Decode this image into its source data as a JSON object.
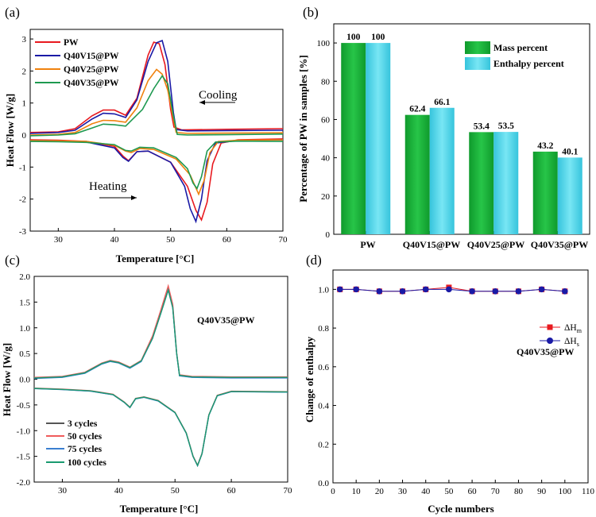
{
  "chart_data": [
    {
      "panel": "(a)",
      "type": "line",
      "xlabel": "Temperature [°C]",
      "ylabel": "Heat Flow [W/g]",
      "xlim": [
        25,
        70
      ],
      "ylim": [
        -3,
        3.3
      ],
      "xticks": [
        30,
        40,
        50,
        60,
        70
      ],
      "yticks": [
        -3,
        -2,
        -1,
        0,
        1,
        2,
        3
      ],
      "annotations": [
        "Cooling",
        "Heating"
      ],
      "series": [
        {
          "name": "PW",
          "color": "#e8191f",
          "cooling": [
            [
              25,
              0.08
            ],
            [
              30,
              0.1
            ],
            [
              33,
              0.2
            ],
            [
              36,
              0.6
            ],
            [
              38,
              0.78
            ],
            [
              40,
              0.78
            ],
            [
              42,
              0.62
            ],
            [
              44,
              1.15
            ],
            [
              46,
              2.5
            ],
            [
              47,
              2.9
            ],
            [
              48,
              2.85
            ],
            [
              49,
              2.2
            ],
            [
              50,
              0.8
            ],
            [
              50.6,
              0.25
            ],
            [
              52,
              0.16
            ],
            [
              60,
              0.18
            ],
            [
              70,
              0.2
            ]
          ],
          "heating": [
            [
              25,
              -0.15
            ],
            [
              30,
              -0.16
            ],
            [
              35,
              -0.2
            ],
            [
              40,
              -0.35
            ],
            [
              41.5,
              -0.65
            ],
            [
              42.5,
              -0.8
            ],
            [
              44,
              -0.52
            ],
            [
              46,
              -0.5
            ],
            [
              50,
              -0.85
            ],
            [
              53,
              -1.6
            ],
            [
              54.5,
              -2.35
            ],
            [
              55.5,
              -2.65
            ],
            [
              56.5,
              -2.1
            ],
            [
              57.5,
              -0.9
            ],
            [
              59,
              -0.25
            ],
            [
              62,
              -0.15
            ],
            [
              70,
              -0.12
            ]
          ]
        },
        {
          "name": "Q40V15@PW",
          "color": "#1a1aa6",
          "cooling": [
            [
              25,
              0.05
            ],
            [
              30,
              0.08
            ],
            [
              33,
              0.15
            ],
            [
              36,
              0.5
            ],
            [
              38,
              0.68
            ],
            [
              40,
              0.66
            ],
            [
              42,
              0.55
            ],
            [
              44,
              1.1
            ],
            [
              46,
              2.3
            ],
            [
              47.5,
              2.88
            ],
            [
              48.5,
              2.95
            ],
            [
              49.5,
              2.3
            ],
            [
              50.5,
              0.7
            ],
            [
              51,
              0.17
            ],
            [
              53,
              0.13
            ],
            [
              60,
              0.14
            ],
            [
              70,
              0.15
            ]
          ],
          "heating": [
            [
              25,
              -0.17
            ],
            [
              30,
              -0.18
            ],
            [
              35,
              -0.22
            ],
            [
              40,
              -0.4
            ],
            [
              41.5,
              -0.7
            ],
            [
              42.5,
              -0.82
            ],
            [
              44,
              -0.52
            ],
            [
              46,
              -0.5
            ],
            [
              50,
              -0.85
            ],
            [
              52.5,
              -1.6
            ],
            [
              53.5,
              -2.3
            ],
            [
              54.5,
              -2.7
            ],
            [
              55.5,
              -2.0
            ],
            [
              56.5,
              -0.8
            ],
            [
              58,
              -0.25
            ],
            [
              62,
              -0.17
            ],
            [
              70,
              -0.15
            ]
          ]
        },
        {
          "name": "Q40V25@PW",
          "color": "#f0820e",
          "cooling": [
            [
              25,
              0.0
            ],
            [
              30,
              0.02
            ],
            [
              33,
              0.08
            ],
            [
              36,
              0.35
            ],
            [
              38,
              0.46
            ],
            [
              40,
              0.45
            ],
            [
              42,
              0.4
            ],
            [
              44,
              0.85
            ],
            [
              46,
              1.7
            ],
            [
              47.5,
              2.05
            ],
            [
              48.5,
              1.9
            ],
            [
              49.5,
              1.4
            ],
            [
              50.5,
              0.5
            ],
            [
              51,
              0.08
            ],
            [
              53,
              0.05
            ],
            [
              60,
              0.06
            ],
            [
              70,
              0.07
            ]
          ],
          "heating": [
            [
              25,
              -0.17
            ],
            [
              30,
              -0.18
            ],
            [
              35,
              -0.2
            ],
            [
              40,
              -0.32
            ],
            [
              42,
              -0.5
            ],
            [
              43,
              -0.55
            ],
            [
              44.5,
              -0.42
            ],
            [
              47,
              -0.45
            ],
            [
              51,
              -0.75
            ],
            [
              53.5,
              -1.25
            ],
            [
              55,
              -1.85
            ],
            [
              56,
              -1.4
            ],
            [
              57,
              -0.55
            ],
            [
              58.5,
              -0.2
            ],
            [
              62,
              -0.16
            ],
            [
              70,
              -0.15
            ]
          ]
        },
        {
          "name": "Q40V35@PW",
          "color": "#1e9950",
          "cooling": [
            [
              25,
              -0.02
            ],
            [
              30,
              0.0
            ],
            [
              33,
              0.04
            ],
            [
              36,
              0.22
            ],
            [
              38,
              0.34
            ],
            [
              40,
              0.32
            ],
            [
              42,
              0.28
            ],
            [
              45,
              0.8
            ],
            [
              47,
              1.45
            ],
            [
              48.5,
              1.85
            ],
            [
              49.5,
              1.6
            ],
            [
              50.5,
              0.6
            ],
            [
              51.2,
              0.02
            ],
            [
              53,
              0.0
            ],
            [
              60,
              0.01
            ],
            [
              70,
              0.03
            ]
          ],
          "heating": [
            [
              25,
              -0.2
            ],
            [
              30,
              -0.21
            ],
            [
              35,
              -0.23
            ],
            [
              40,
              -0.3
            ],
            [
              42,
              -0.48
            ],
            [
              43,
              -0.5
            ],
            [
              44.5,
              -0.38
            ],
            [
              47,
              -0.4
            ],
            [
              51,
              -0.7
            ],
            [
              53,
              -1.05
            ],
            [
              54,
              -1.5
            ],
            [
              54.7,
              -1.67
            ],
            [
              55.5,
              -1.3
            ],
            [
              56.5,
              -0.5
            ],
            [
              58,
              -0.22
            ],
            [
              62,
              -0.19
            ],
            [
              70,
              -0.2
            ]
          ]
        }
      ]
    },
    {
      "panel": "(b)",
      "type": "bar",
      "ylabel": "Percentage of PW in samples [%]",
      "ylim": [
        0,
        110
      ],
      "yticks": [
        0,
        20,
        40,
        60,
        80,
        100
      ],
      "categories": [
        "PW",
        "Q40V15@PW",
        "Q40V25@PW",
        "Q40V35@PW"
      ],
      "series": [
        {
          "name": "Mass percent",
          "color": "#1fb03c",
          "values": [
            100,
            62.4,
            53.4,
            43.2
          ],
          "labels": [
            "100",
            "62.4",
            "53.4",
            "43.2"
          ]
        },
        {
          "name": "Enthalpy percent",
          "color": "#4fd6ea",
          "values": [
            100,
            66.1,
            53.5,
            40.1
          ],
          "labels": [
            "100",
            "66.1",
            "53.5",
            "40.1"
          ]
        }
      ]
    },
    {
      "panel": "(c)",
      "type": "line",
      "xlabel": "Temperature [°C]",
      "ylabel": "Heat Flow [W/g]",
      "xlim": [
        25,
        70
      ],
      "ylim": [
        -2.0,
        2.0
      ],
      "xticks": [
        30,
        40,
        50,
        60,
        70
      ],
      "yticks": [
        -2.0,
        -1.5,
        -1.0,
        -0.5,
        0.0,
        0.5,
        1.0,
        1.5,
        2.0
      ],
      "ytick_labels": [
        "-2.0",
        "-1.5",
        "-1.0",
        "-0.5",
        "0.0",
        "0.5",
        "1.0",
        "1.5",
        "2.0"
      ],
      "sample": "Q40V35@PW",
      "series": [
        {
          "name": "3 cycles",
          "color": "#555555",
          "peak": 1.75,
          "offset": 0.0
        },
        {
          "name": "50 cycles",
          "color": "#ef5b5b",
          "peak": 1.8,
          "offset": 0.015
        },
        {
          "name": "75 cycles",
          "color": "#3a7fd0",
          "peak": 1.74,
          "offset": -0.005
        },
        {
          "name": "100 cycles",
          "color": "#199a70",
          "peak": 1.73,
          "offset": 0.005
        }
      ],
      "base_cooling": [
        [
          25,
          0.02
        ],
        [
          30,
          0.04
        ],
        [
          34,
          0.12
        ],
        [
          37,
          0.3
        ],
        [
          38.5,
          0.35
        ],
        [
          40,
          0.32
        ],
        [
          42,
          0.22
        ],
        [
          44,
          0.35
        ],
        [
          46,
          0.8
        ],
        [
          47.5,
          1.3
        ],
        [
          48.8,
          1.75
        ],
        [
          49.6,
          1.4
        ],
        [
          50.3,
          0.5
        ],
        [
          50.8,
          0.07
        ],
        [
          53,
          0.04
        ],
        [
          60,
          0.03
        ],
        [
          70,
          0.03
        ]
      ],
      "base_heating": [
        [
          25,
          -0.18
        ],
        [
          30,
          -0.2
        ],
        [
          35,
          -0.23
        ],
        [
          39,
          -0.3
        ],
        [
          41,
          -0.45
        ],
        [
          42,
          -0.55
        ],
        [
          43,
          -0.38
        ],
        [
          44.5,
          -0.35
        ],
        [
          47,
          -0.42
        ],
        [
          50,
          -0.65
        ],
        [
          52,
          -1.05
        ],
        [
          53.2,
          -1.5
        ],
        [
          54,
          -1.68
        ],
        [
          54.8,
          -1.45
        ],
        [
          56,
          -0.7
        ],
        [
          57.5,
          -0.32
        ],
        [
          60,
          -0.24
        ],
        [
          70,
          -0.25
        ]
      ]
    },
    {
      "panel": "(d)",
      "type": "scatter",
      "xlabel": "Cycle numbers",
      "ylabel": "Change of enthalpy",
      "xlim": [
        0,
        110
      ],
      "ylim": [
        0.0,
        1.1
      ],
      "xticks": [
        0,
        10,
        20,
        30,
        40,
        50,
        60,
        70,
        80,
        90,
        100,
        110
      ],
      "yticks": [
        0.0,
        0.2,
        0.4,
        0.6,
        0.8,
        1.0
      ],
      "ytick_labels": [
        "0.0",
        "0.2",
        "0.4",
        "0.6",
        "0.8",
        "1.0"
      ],
      "sample": "Q40V35@PW",
      "series": [
        {
          "name": "ΔH",
          "sub": "m",
          "color": "#e8191f",
          "marker": "square",
          "x": [
            3,
            10,
            20,
            30,
            40,
            50,
            60,
            70,
            80,
            90,
            100
          ],
          "y": [
            1.0,
            1.0,
            0.99,
            0.99,
            1.0,
            1.01,
            0.99,
            0.99,
            0.99,
            1.0,
            0.99
          ]
        },
        {
          "name": "ΔH",
          "sub": "s",
          "color": "#1a1aa6",
          "marker": "circle",
          "x": [
            3,
            10,
            20,
            30,
            40,
            50,
            60,
            70,
            80,
            90,
            100
          ],
          "y": [
            1.0,
            1.0,
            0.99,
            0.99,
            1.0,
            1.0,
            0.99,
            0.99,
            0.99,
            1.0,
            0.99
          ]
        }
      ]
    }
  ]
}
